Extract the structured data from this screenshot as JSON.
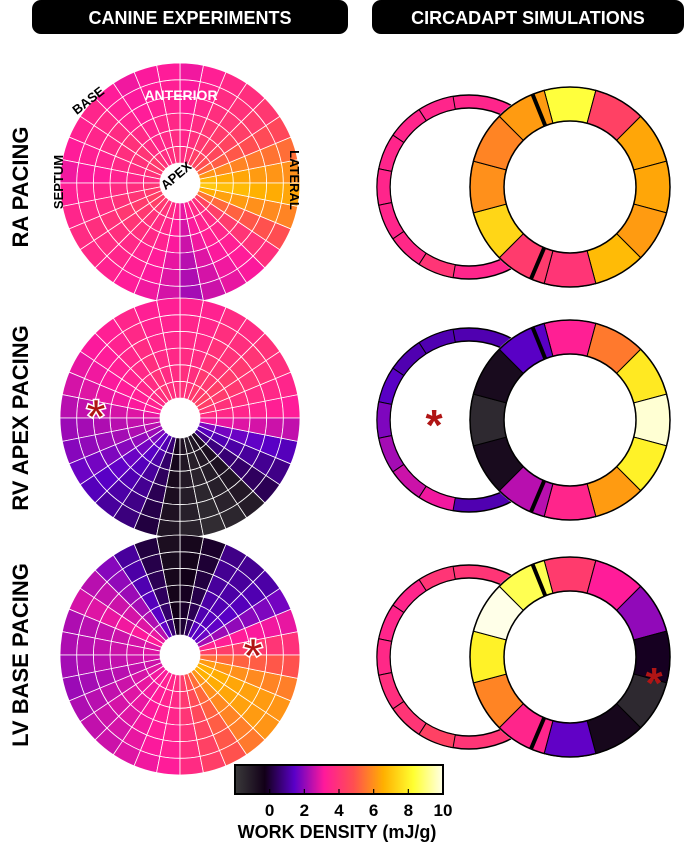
{
  "headers": {
    "left": "CANINE EXPERIMENTS",
    "right": "CIRCADAPT SIMULATIONS"
  },
  "rows": [
    {
      "label": "RA PACING"
    },
    {
      "label": "RV APEX PACING"
    },
    {
      "label": "LV BASE PACING"
    }
  ],
  "orientation_labels": {
    "base": "BASE",
    "anterior": "ANTERIOR",
    "septum": "SEPTUM",
    "lateral": "LATERAL",
    "apex": "APEX"
  },
  "pacing_site_marker": "*",
  "colorbar": {
    "title": "WORK DENSITY (mJ/g)",
    "ticks": [
      "0",
      "2",
      "4",
      "6",
      "8",
      "10"
    ],
    "range": [
      -2,
      10
    ],
    "colors": [
      "#3a3a3a",
      "#120018",
      "#5a00c8",
      "#ff1a9b",
      "#ff4f50",
      "#ffb000",
      "#ffff30",
      "#ffffe8"
    ]
  },
  "canine_maps": [
    {
      "sector_work_density": [
        6.4,
        5.8,
        5.0,
        4.5,
        4.2,
        4.0,
        3.7,
        3.4,
        3.6,
        3.5,
        3.4,
        3.6,
        3.9,
        3.8,
        3.6,
        3.4,
        3.7,
        3.9,
        4.1,
        4.0,
        3.8,
        3.6,
        3.4,
        3.1,
        2.6,
        3.0,
        3.3,
        3.5,
        4.2,
        5.2,
        6.2,
        6.8
      ],
      "ring_offset": [
        0.3,
        0.1,
        0,
        -0.2,
        -0.3,
        -0.4
      ]
    },
    {
      "sector_work_density": [
        3.5,
        3.8,
        4.1,
        4.2,
        4.0,
        4.0,
        3.7,
        3.7,
        3.6,
        3.6,
        3.8,
        3.6,
        3.4,
        3.2,
        3.0,
        2.7,
        2.4,
        2.2,
        1.9,
        1.6,
        1.3,
        1.0,
        0.4,
        -0.6,
        -1.0,
        -1.3,
        -1.1,
        -0.8,
        0.6,
        1.1,
        1.6,
        2.8
      ],
      "ring_offset": [
        0.2,
        0.1,
        0,
        -0.1,
        -0.2,
        -0.3
      ],
      "pacing_site_angle_deg": 225
    },
    {
      "sector_work_density": [
        4.2,
        3.2,
        2.0,
        1.4,
        1.2,
        1.1,
        0.2,
        -0.2,
        -0.4,
        0.4,
        1.3,
        2.2,
        2.7,
        3.0,
        2.6,
        2.6,
        2.5,
        2.4,
        2.6,
        2.8,
        2.9,
        3.1,
        3.3,
        3.5,
        4.0,
        4.6,
        5.2,
        5.9,
        6.4,
        6.4,
        6.0,
        5.2
      ],
      "ring_offset": [
        0.2,
        0.1,
        0,
        -0.1,
        -0.2,
        -0.3
      ],
      "pacing_site_angle_deg": 20
    }
  ],
  "circadapt_maps": [
    {
      "rv_segments": [
        3.5,
        3.5,
        3.5,
        3.5,
        3.5,
        3.6,
        4.0
      ],
      "lv_segments": [
        8.4,
        4.4,
        6.4,
        6.4,
        6.2,
        6.8,
        4.0,
        4.2,
        7.4,
        6.0,
        5.8,
        6.2
      ]
    },
    {
      "rv_segments": [
        1.2,
        1.2,
        1.4,
        1.8,
        2.2,
        2.6,
        3.0
      ],
      "lv_segments": [
        3.3,
        5.6,
        7.8,
        9.8,
        8.0,
        6.2,
        3.5,
        2.4,
        -0.6,
        -1.5,
        -0.6,
        1.4
      ],
      "pacing_site_in_rv": true
    },
    {
      "rv_segments": [
        4.0,
        3.5,
        3.5,
        3.6,
        3.8,
        4.0,
        4.4
      ],
      "lv_segments": [
        4.2,
        3.2,
        2.0,
        -0.2,
        -1.5,
        -0.5,
        1.5,
        3.5,
        5.8,
        8.0,
        10.0,
        8.6
      ],
      "pacing_site_lv_segment": 10
    }
  ]
}
